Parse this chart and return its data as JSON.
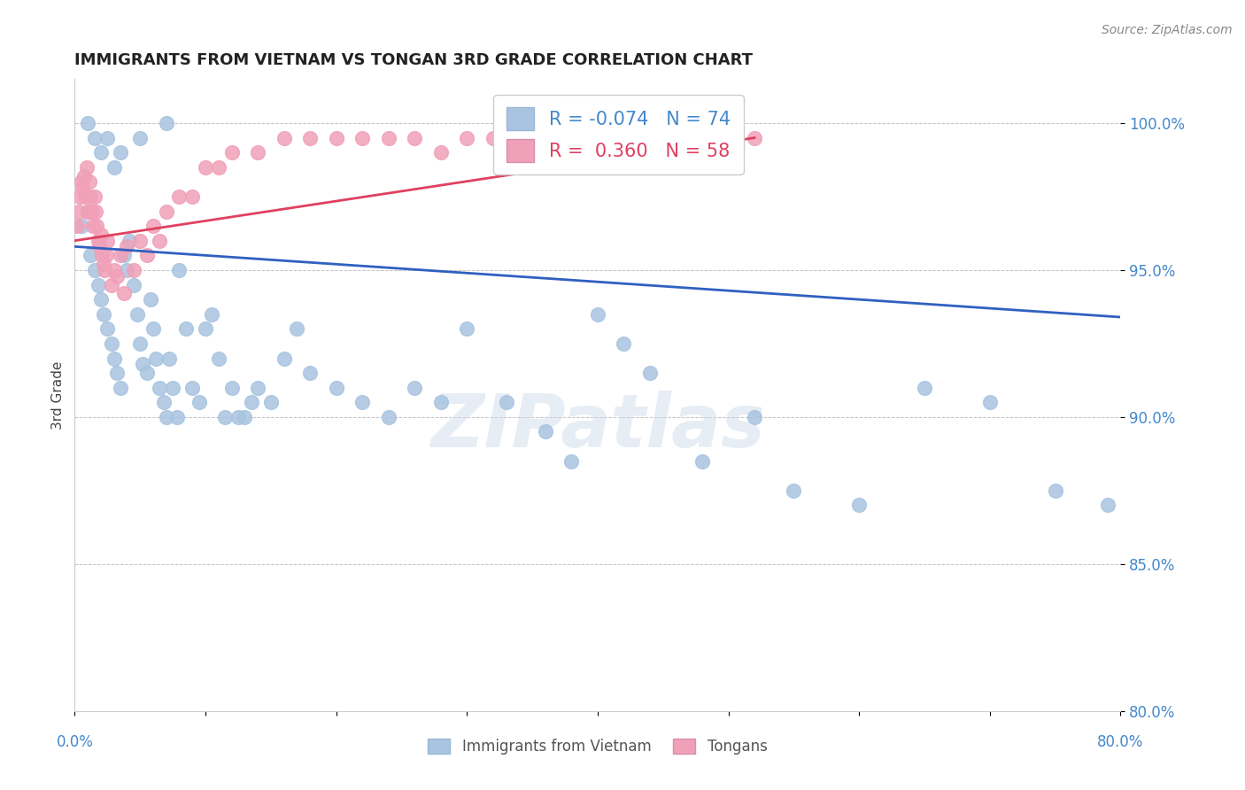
{
  "title": "IMMIGRANTS FROM VIETNAM VS TONGAN 3RD GRADE CORRELATION CHART",
  "source": "Source: ZipAtlas.com",
  "ylabel": "3rd Grade",
  "yticks": [
    80.0,
    85.0,
    90.0,
    95.0,
    100.0
  ],
  "ytick_labels": [
    "80.0%",
    "85.0%",
    "90.0%",
    "95.0%",
    "100.0%"
  ],
  "legend_blue_r": "-0.074",
  "legend_blue_n": "74",
  "legend_pink_r": "0.360",
  "legend_pink_n": "58",
  "legend_label_blue": "Immigrants from Vietnam",
  "legend_label_pink": "Tongans",
  "blue_color": "#a8c4e0",
  "pink_color": "#f0a0b8",
  "blue_line_color": "#3060c0",
  "pink_line_color": "#e04060",
  "watermark": "ZIPatlas",
  "blue_points_x": [
    0.5,
    1.0,
    1.2,
    1.5,
    1.8,
    2.0,
    2.2,
    2.5,
    2.8,
    3.0,
    3.2,
    3.5,
    3.8,
    4.0,
    4.2,
    4.5,
    4.8,
    5.0,
    5.2,
    5.5,
    5.8,
    6.0,
    6.2,
    6.5,
    6.8,
    7.0,
    7.2,
    7.5,
    7.8,
    8.0,
    8.5,
    9.0,
    9.5,
    10.0,
    10.5,
    11.0,
    11.5,
    12.0,
    12.5,
    13.0,
    13.5,
    14.0,
    15.0,
    16.0,
    17.0,
    18.0,
    20.0,
    22.0,
    24.0,
    26.0,
    28.0,
    30.0,
    33.0,
    36.0,
    38.0,
    40.0,
    42.0,
    44.0,
    48.0,
    52.0,
    55.0,
    60.0,
    65.0,
    70.0,
    75.0,
    79.0,
    1.0,
    1.5,
    2.0,
    2.5,
    3.0,
    3.5,
    5.0,
    7.0
  ],
  "blue_points_y": [
    96.5,
    97.0,
    95.5,
    95.0,
    94.5,
    94.0,
    93.5,
    93.0,
    92.5,
    92.0,
    91.5,
    91.0,
    95.5,
    95.0,
    96.0,
    94.5,
    93.5,
    92.5,
    91.8,
    91.5,
    94.0,
    93.0,
    92.0,
    91.0,
    90.5,
    90.0,
    92.0,
    91.0,
    90.0,
    95.0,
    93.0,
    91.0,
    90.5,
    93.0,
    93.5,
    92.0,
    90.0,
    91.0,
    90.0,
    90.0,
    90.5,
    91.0,
    90.5,
    92.0,
    93.0,
    91.5,
    91.0,
    90.5,
    90.0,
    91.0,
    90.5,
    93.0,
    90.5,
    89.5,
    88.5,
    93.5,
    92.5,
    91.5,
    88.5,
    90.0,
    87.5,
    87.0,
    91.0,
    90.5,
    87.5,
    87.0,
    100.0,
    99.5,
    99.0,
    99.5,
    98.5,
    99.0,
    99.5,
    100.0
  ],
  "pink_points_x": [
    0.2,
    0.3,
    0.4,
    0.5,
    0.6,
    0.7,
    0.8,
    0.9,
    1.0,
    1.1,
    1.2,
    1.3,
    1.4,
    1.5,
    1.6,
    1.7,
    1.8,
    1.9,
    2.0,
    2.1,
    2.2,
    2.3,
    2.4,
    2.5,
    2.8,
    3.0,
    3.2,
    3.5,
    3.8,
    4.0,
    4.5,
    5.0,
    5.5,
    6.0,
    6.5,
    7.0,
    8.0,
    9.0,
    10.0,
    11.0,
    12.0,
    14.0,
    16.0,
    18.0,
    20.0,
    22.0,
    24.0,
    26.0,
    28.0,
    30.0,
    32.0,
    34.0,
    38.0,
    42.0,
    46.0,
    48.0,
    50.0,
    52.0
  ],
  "pink_points_y": [
    96.5,
    97.0,
    97.5,
    98.0,
    97.8,
    98.2,
    97.5,
    98.5,
    97.0,
    98.0,
    97.5,
    97.0,
    96.5,
    97.5,
    97.0,
    96.5,
    96.0,
    95.8,
    96.2,
    95.5,
    95.2,
    95.0,
    95.5,
    96.0,
    94.5,
    95.0,
    94.8,
    95.5,
    94.2,
    95.8,
    95.0,
    96.0,
    95.5,
    96.5,
    96.0,
    97.0,
    97.5,
    97.5,
    98.5,
    98.5,
    99.0,
    99.0,
    99.5,
    99.5,
    99.5,
    99.5,
    99.5,
    99.5,
    99.0,
    99.5,
    99.5,
    99.5,
    99.0,
    99.5,
    99.5,
    99.5,
    99.5,
    99.5
  ],
  "xlim": [
    0.0,
    80.0
  ],
  "ylim": [
    80.0,
    101.5
  ],
  "blue_line_x": [
    0.0,
    80.0
  ],
  "blue_line_y": [
    95.8,
    93.4
  ],
  "pink_line_x": [
    0.0,
    52.0
  ],
  "pink_line_y": [
    96.0,
    99.5
  ]
}
